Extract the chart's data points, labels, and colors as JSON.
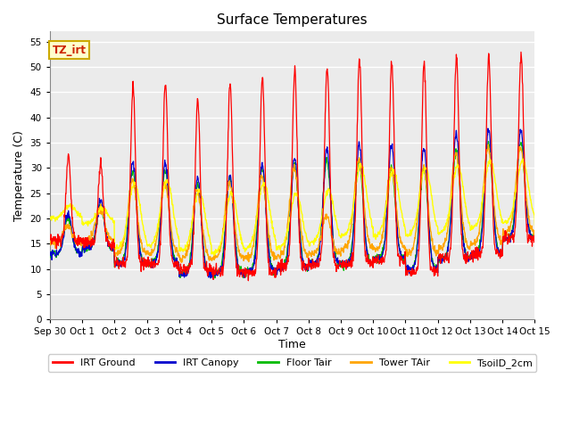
{
  "title": "Surface Temperatures",
  "ylabel": "Temperature (C)",
  "xlabel": "Time",
  "ylim": [
    0,
    57
  ],
  "yticks": [
    0,
    5,
    10,
    15,
    20,
    25,
    30,
    35,
    40,
    45,
    50,
    55
  ],
  "tz_label": "TZ_irt",
  "legend": [
    {
      "label": "IRT Ground",
      "color": "#FF0000"
    },
    {
      "label": "IRT Canopy",
      "color": "#0000CD"
    },
    {
      "label": "Floor Tair",
      "color": "#00BB00"
    },
    {
      "label": "Tower TAir",
      "color": "#FFA500"
    },
    {
      "label": "TsoilD_2cm",
      "color": "#FFFF00"
    }
  ],
  "plot_bg": "#EBEBEB",
  "grid_color": "#FFFFFF",
  "day_labels": [
    "Sep 30",
    "Oct 1",
    "Oct 2",
    "Oct 3",
    "Oct 4",
    "Oct 5",
    "Oct 6",
    "Oct 7",
    "Oct 8",
    "Oct 9",
    "Oct 10",
    "Oct 11",
    "Oct 12",
    "Oct 13",
    "Oct 14",
    "Oct 15"
  ],
  "irt_ground_peaks": [
    32.5,
    31.0,
    46.5,
    47.0,
    43.5,
    47.0,
    48.0,
    49.5,
    50.0,
    51.5,
    51.0,
    50.5,
    52.0,
    52.5
  ],
  "irt_canopy_peaks": [
    21.0,
    23.5,
    31.0,
    31.0,
    28.0,
    28.5,
    30.5,
    32.0,
    34.0,
    35.0,
    34.5,
    34.0,
    37.0,
    37.5
  ],
  "floor_peaks": [
    20.0,
    22.5,
    29.5,
    29.5,
    27.0,
    28.0,
    30.0,
    30.5,
    31.5,
    31.5,
    30.0,
    30.0,
    33.5,
    35.0
  ],
  "tower_peaks": [
    18.5,
    22.0,
    27.5,
    27.0,
    25.5,
    27.0,
    28.0,
    30.0,
    20.5,
    31.5,
    30.0,
    30.0,
    33.0,
    34.0
  ],
  "tsoil_peaks": [
    22.5,
    22.0,
    27.0,
    27.5,
    25.5,
    25.0,
    27.0,
    25.0,
    25.5,
    30.5,
    29.5,
    30.0,
    30.5,
    31.5
  ],
  "irt_ground_base": [
    15.5,
    15.0,
    11.0,
    11.0,
    10.0,
    9.5,
    9.5,
    10.5,
    11.0,
    11.0,
    11.5,
    9.5,
    12.0,
    13.0,
    16.0
  ],
  "canopy_base": [
    13.0,
    14.0,
    11.0,
    11.0,
    9.0,
    9.0,
    9.5,
    10.0,
    11.0,
    11.0,
    12.0,
    10.0,
    12.0,
    13.0,
    16.0
  ],
  "floor_base": [
    13.0,
    14.0,
    11.0,
    11.0,
    9.0,
    9.0,
    9.5,
    10.0,
    11.0,
    11.0,
    12.0,
    10.0,
    12.0,
    13.0,
    16.0
  ],
  "tower_base": [
    15.0,
    15.5,
    13.0,
    13.0,
    12.0,
    12.0,
    12.0,
    12.5,
    13.0,
    14.0,
    14.0,
    13.0,
    14.0,
    15.0,
    17.0
  ],
  "tsoil_base": [
    20.0,
    19.0,
    14.0,
    14.5,
    13.5,
    13.0,
    14.0,
    14.0,
    15.0,
    16.5,
    16.5,
    16.5,
    17.0,
    18.0,
    19.0
  ]
}
